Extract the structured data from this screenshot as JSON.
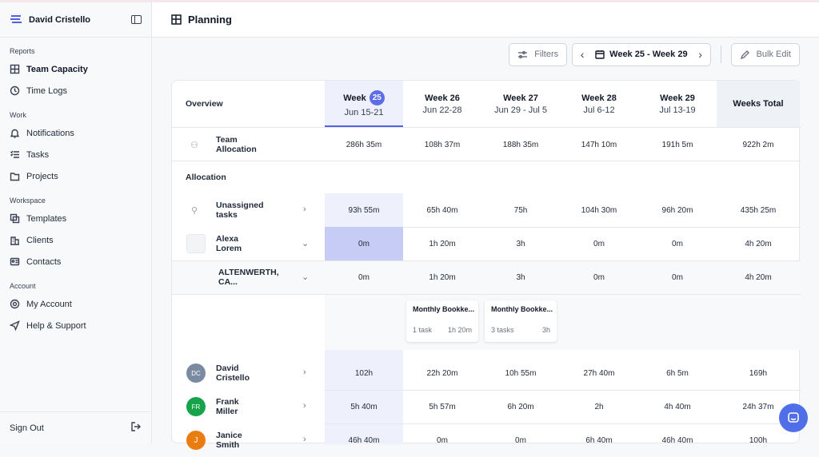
{
  "sidebar": {
    "user": "David Cristello",
    "sections": [
      {
        "label": "Reports",
        "items": [
          {
            "label": "Team Capacity",
            "icon": "grid-icon",
            "active": true
          },
          {
            "label": "Time Logs",
            "icon": "clock-icon"
          }
        ]
      },
      {
        "label": "Work",
        "items": [
          {
            "label": "Notifications",
            "icon": "bell-icon"
          },
          {
            "label": "Tasks",
            "icon": "list-icon"
          },
          {
            "label": "Projects",
            "icon": "folder-icon"
          }
        ]
      },
      {
        "label": "Workspace",
        "items": [
          {
            "label": "Templates",
            "icon": "copy-icon"
          },
          {
            "label": "Clients",
            "icon": "building-icon"
          },
          {
            "label": "Contacts",
            "icon": "contact-card-icon"
          }
        ]
      },
      {
        "label": "Account",
        "items": [
          {
            "label": "My Account",
            "icon": "gear-icon"
          },
          {
            "label": "Help & Support",
            "icon": "send-icon"
          }
        ]
      }
    ],
    "sign_out": "Sign Out"
  },
  "header": {
    "title": "Planning"
  },
  "toolbar": {
    "filters": "Filters",
    "week_range": "Week 25 - Week 29",
    "bulk_edit": "Bulk Edit"
  },
  "table": {
    "overview": "Overview",
    "weeks": [
      {
        "title": "Week",
        "badge": "25",
        "dates": "Jun 15-21",
        "active": true
      },
      {
        "title": "Week 26",
        "dates": "Jun 22-28"
      },
      {
        "title": "Week 27",
        "dates": "Jun 29 - Jul 5"
      },
      {
        "title": "Week 28",
        "dates": "Jul 6-12"
      },
      {
        "title": "Week 29",
        "dates": "Jul 13-19"
      }
    ],
    "total_header": "Weeks Total",
    "team_allocation": {
      "label": "Team Allocation",
      "values": [
        "286h 35m",
        "108h 37m",
        "188h 35m",
        "147h 10m",
        "191h 5m"
      ],
      "total": "922h 2m"
    },
    "allocation_label": "Allocation",
    "rows": [
      {
        "name": "Unassigned tasks",
        "values": [
          "93h 55m",
          "65h 40m",
          "75h",
          "104h 30m",
          "96h 20m"
        ],
        "total": "435h 25m"
      },
      {
        "name": "Alexa Lorem",
        "values": [
          "0m",
          "1h 20m",
          "3h",
          "0m",
          "0m"
        ],
        "total": "4h 20m"
      },
      {
        "name": "ALTENWERTH, CA...",
        "values": [
          "0m",
          "1h 20m",
          "3h",
          "0m",
          "0m"
        ],
        "total": "4h 20m"
      },
      {
        "name": "David Cristello",
        "values": [
          "102h",
          "22h 20m",
          "10h 55m",
          "27h 40m",
          "6h 5m"
        ],
        "total": "169h"
      },
      {
        "name": "Frank Miller",
        "initials": "FR",
        "values": [
          "5h 40m",
          "5h 57m",
          "6h 20m",
          "2h",
          "4h 40m"
        ],
        "total": "24h 37m"
      },
      {
        "name": "Janice Smith",
        "initials": "J",
        "values": [
          "46h 40m",
          "0m",
          "0m",
          "6h 40m",
          "46h 40m"
        ],
        "total": "100h"
      }
    ],
    "mini_cards": [
      {
        "title": "Monthly Bookke...",
        "count": "1 task",
        "time": "1h 20m"
      },
      {
        "title": "Monthly Bookke...",
        "count": "3 tasks",
        "time": "3h"
      }
    ]
  },
  "colors": {
    "accent": "#4f63e0",
    "highlight": "#eef0fb",
    "highlight_strong": "#c6ccf5",
    "green_avatar": "#16a34a",
    "orange_avatar": "#ea7c12"
  }
}
